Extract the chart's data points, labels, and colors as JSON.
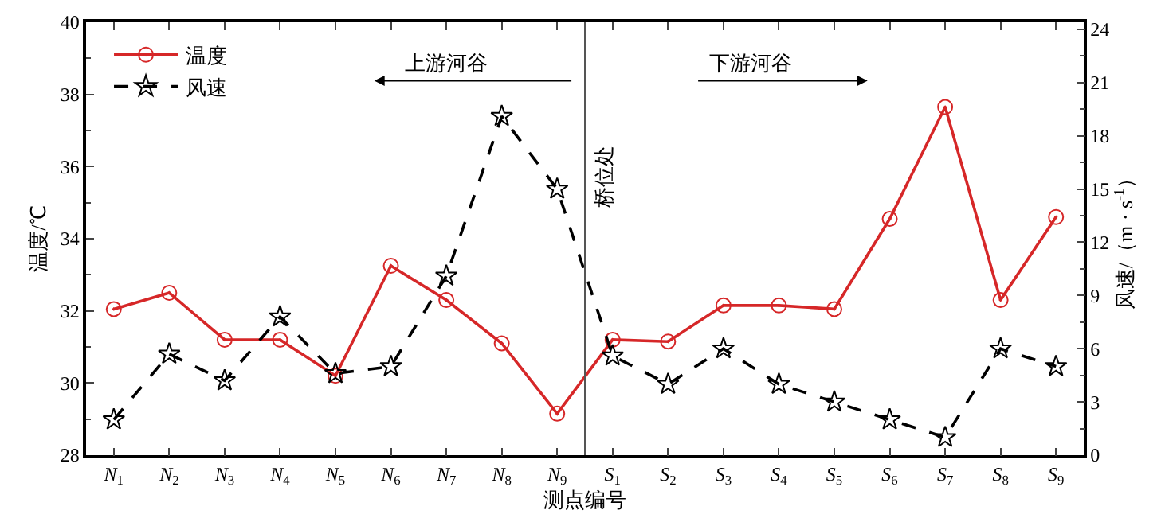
{
  "chart_data": {
    "type": "line",
    "categories": [
      "N$_{1}$",
      "N$_{2}$",
      "N$_{3}$",
      "N$_{4}$",
      "N$_{5}$",
      "N$_{6}$",
      "N$_{7}$",
      "N$_{8}$",
      "N$_{9}$",
      "S$_{1}$",
      "S$_{2}$",
      "S$_{3}$",
      "S$_{4}$",
      "S$_{5}$",
      "S$_{6}$",
      "S$_{7}$",
      "S$_{8}$",
      "S$_{9}$"
    ],
    "series": [
      {
        "name": "温度",
        "color": "#d62728",
        "marker": "circle",
        "line_style": "solid",
        "values": [
          32.05,
          32.5,
          31.2,
          31.2,
          30.2,
          33.25,
          32.3,
          31.1,
          29.15,
          31.2,
          31.15,
          32.15,
          32.15,
          32.05,
          34.55,
          37.65,
          32.3,
          34.6
        ]
      },
      {
        "name": "风速",
        "color": "#000000",
        "marker": "star",
        "line_style": "dashed",
        "axis": "y2",
        "values": [
          2.0,
          5.7,
          4.2,
          7.8,
          4.6,
          5.0,
          10.1,
          19.1,
          15.0,
          5.6,
          4.0,
          6.0,
          4.0,
          3.0,
          2.0,
          1.0,
          6.0,
          5.0
        ]
      }
    ],
    "xlabel": "测点编号",
    "ylabel": "温度/℃",
    "y2label": "风速/（m · s$^{-1}$）",
    "ylim": [
      28,
      40
    ],
    "yticks": [
      28,
      30,
      32,
      34,
      36,
      38,
      40
    ],
    "y2lim": [
      0,
      24.4
    ],
    "y2ticks": [
      0,
      3,
      6,
      9,
      12,
      15,
      18,
      21,
      24
    ],
    "annotations": [
      "上游河谷",
      "下游河谷",
      "桥位处"
    ],
    "legend": "top left"
  }
}
